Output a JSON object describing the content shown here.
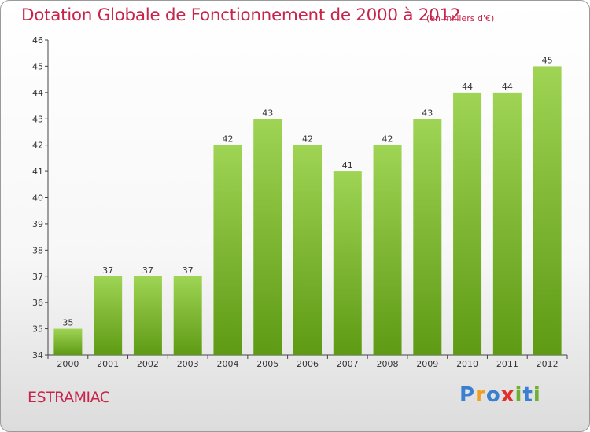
{
  "header": {
    "title": "Dotation Globale de Fonctionnement de 2000 à 2012",
    "unit": "(en milliers d'€)"
  },
  "footer": {
    "commune": "ESTRAMIAC",
    "logo_text": "Proxiti"
  },
  "colors": {
    "bar_light": "#9fd454",
    "bar_dark": "#5e9a14",
    "accent": "#c8234a"
  },
  "chart_data": {
    "type": "bar",
    "categories": [
      "2000",
      "2001",
      "2002",
      "2003",
      "2004",
      "2005",
      "2006",
      "2007",
      "2008",
      "2009",
      "2010",
      "2011",
      "2012"
    ],
    "values": [
      35,
      37,
      37,
      37,
      42,
      43,
      42,
      41,
      42,
      43,
      44,
      44,
      45
    ],
    "ylim": [
      34,
      46
    ],
    "yticks": [
      34,
      35,
      36,
      37,
      38,
      39,
      40,
      41,
      42,
      43,
      44,
      45,
      46
    ],
    "grid": false,
    "show_data_labels": true
  }
}
